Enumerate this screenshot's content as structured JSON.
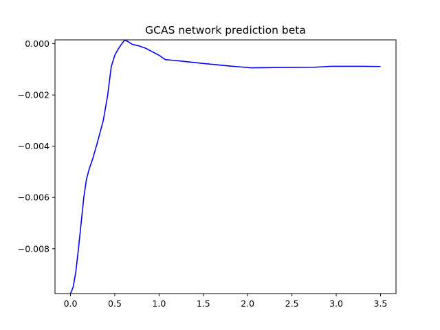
{
  "chart_data": {
    "type": "line",
    "title": "GCAS network prediction beta",
    "xlabel": "",
    "ylabel": "",
    "xlim": [
      -0.175,
      3.675
    ],
    "ylim": [
      -0.00975,
      0.00015
    ],
    "x_ticks": [
      {
        "value": 0.0,
        "label": "0.0"
      },
      {
        "value": 0.5,
        "label": "0.5"
      },
      {
        "value": 1.0,
        "label": "1.0"
      },
      {
        "value": 1.5,
        "label": "1.5"
      },
      {
        "value": 2.0,
        "label": "2.0"
      },
      {
        "value": 2.5,
        "label": "2.5"
      },
      {
        "value": 3.0,
        "label": "3.0"
      },
      {
        "value": 3.5,
        "label": "3.5"
      }
    ],
    "y_ticks": [
      {
        "value": 0.0,
        "label": "0.000"
      },
      {
        "value": -0.002,
        "label": "−0.002"
      },
      {
        "value": -0.004,
        "label": "−0.004"
      },
      {
        "value": -0.006,
        "label": "−0.006"
      },
      {
        "value": -0.008,
        "label": "−0.008"
      }
    ],
    "grid": false,
    "series": [
      {
        "color": "#0000ff",
        "x": [
          0.0,
          0.03,
          0.06,
          0.09,
          0.12,
          0.15,
          0.18,
          0.21,
          0.25,
          0.3,
          0.37,
          0.42,
          0.46,
          0.5,
          0.54,
          0.58,
          0.61,
          0.64,
          0.7,
          0.77,
          0.85,
          1.0,
          1.07,
          1.2,
          1.5,
          1.8,
          2.04,
          2.3,
          2.74,
          2.95,
          3.3,
          3.5
        ],
        "y": [
          -0.00975,
          -0.0095,
          -0.0089,
          -0.008,
          -0.007,
          -0.006,
          -0.0053,
          -0.0049,
          -0.0045,
          -0.0039,
          -0.003,
          -0.002,
          -0.0009,
          -0.00045,
          -0.0002,
          0.0,
          0.00014,
          0.0001,
          -3e-05,
          -8e-05,
          -0.00018,
          -0.00045,
          -0.00062,
          -0.00066,
          -0.00077,
          -0.00087,
          -0.00094,
          -0.00093,
          -0.00092,
          -0.00088,
          -0.00088,
          -0.00089
        ]
      }
    ]
  }
}
